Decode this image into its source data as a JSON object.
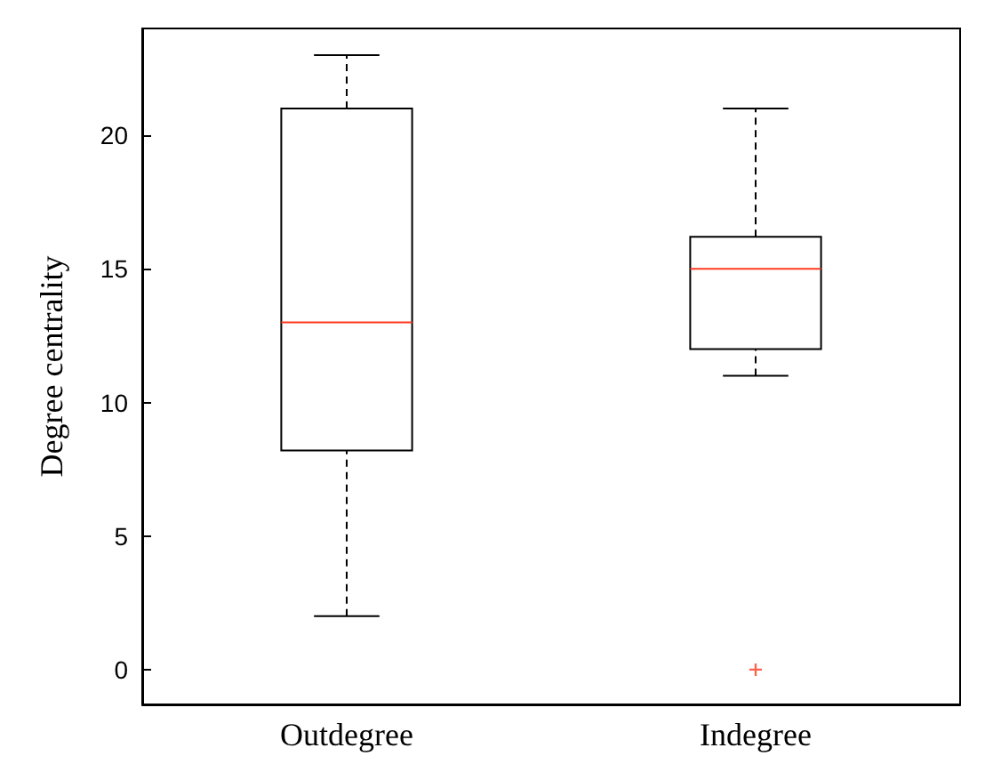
{
  "chart_data": {
    "type": "box",
    "ylabel": "Degree centrality",
    "categories": [
      "Outdegree",
      "Indegree"
    ],
    "ylim": [
      -1.3,
      24
    ],
    "yticks": [
      0,
      5,
      10,
      15,
      20
    ],
    "series": [
      {
        "color": "#000000",
        "boxes": [
          {
            "low": 2,
            "q1": 8.2,
            "median": 13,
            "q3": 21,
            "high": 23
          },
          {
            "low": 11,
            "q1": 12,
            "median": 15,
            "q3": 16.2,
            "high": 21,
            "outliers": [
              0
            ]
          }
        ]
      }
    ]
  }
}
